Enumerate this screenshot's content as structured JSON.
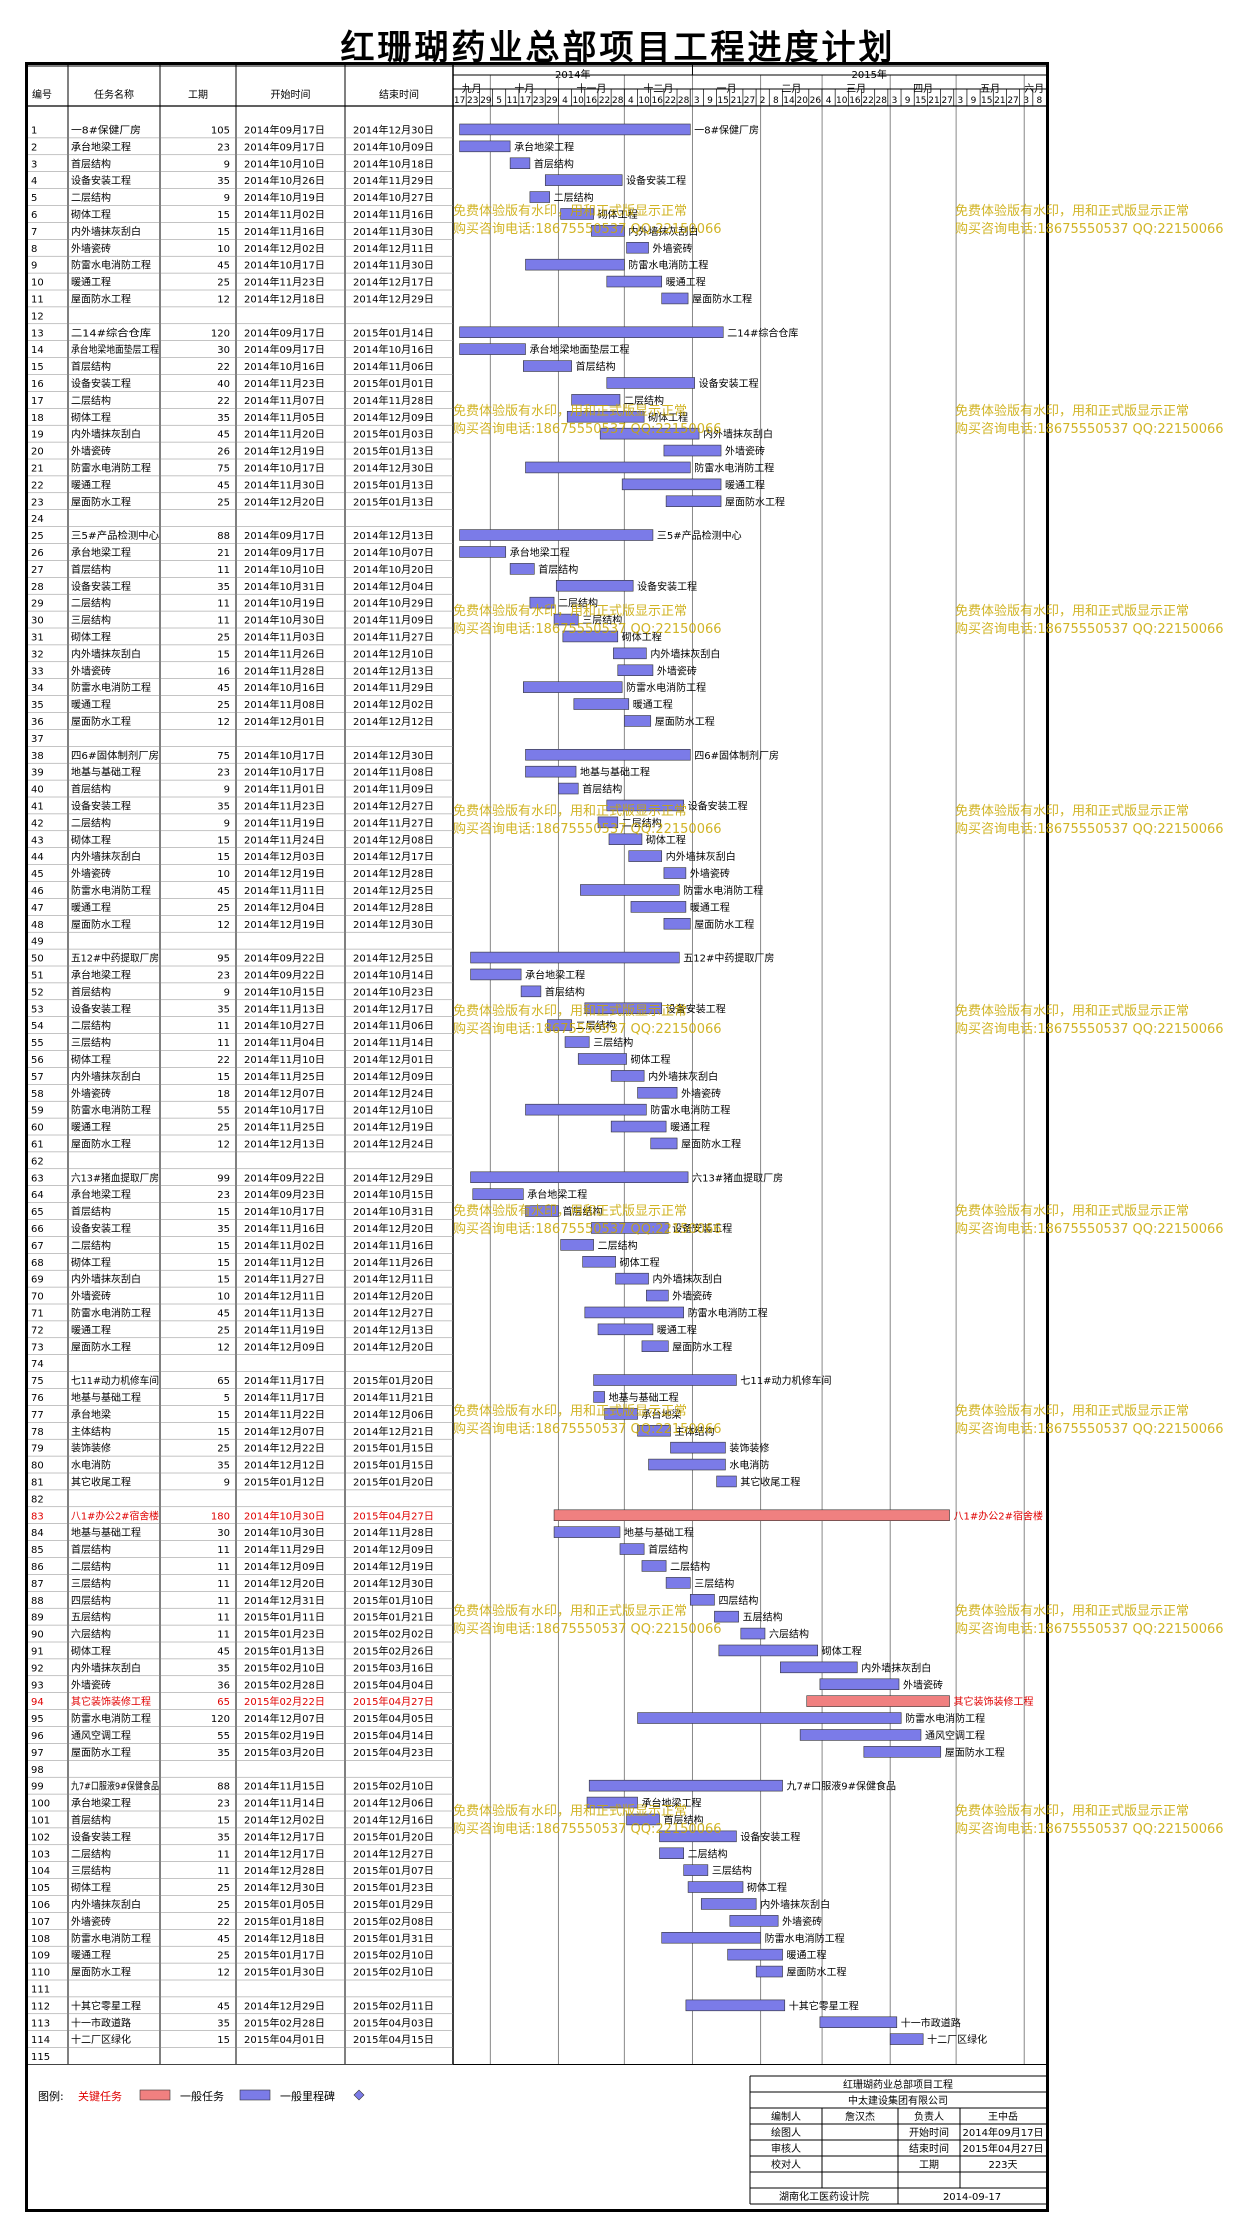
{
  "title": "红珊瑚药业总部项目工程进度计划",
  "columns": {
    "id": "编号",
    "name": "任务名称",
    "duration": "工期",
    "start": "开始时间",
    "end": "结束时间"
  },
  "timeline": {
    "years": [
      "2014年",
      "2015年"
    ],
    "months": [
      "九月",
      "十月",
      "十一月",
      "十二月",
      "一月",
      "二月",
      "三月",
      "四月",
      "五月",
      "六月"
    ],
    "day_ticks": [
      "17",
      "23",
      "29",
      "5",
      "11",
      "17",
      "23",
      "29",
      "4",
      "10",
      "16",
      "22",
      "28",
      "4",
      "10",
      "16",
      "22",
      "28",
      "3",
      "9",
      "15",
      "21",
      "27",
      "2",
      "8",
      "14",
      "20",
      "26",
      "4",
      "10",
      "16",
      "22",
      "28",
      "3",
      "9",
      "15",
      "21",
      "27",
      "3",
      "9",
      "15",
      "21",
      "27",
      "3",
      "8"
    ]
  },
  "tasks": [
    {
      "id": "1",
      "name": "一8#保健厂房",
      "dur": "105",
      "start": "2014年09月17日",
      "end": "2014年12月30日"
    },
    {
      "id": "2",
      "name": "承台地梁工程",
      "dur": "23",
      "start": "2014年09月17日",
      "end": "2014年10月09日"
    },
    {
      "id": "3",
      "name": "首层结构",
      "dur": "9",
      "start": "2014年10月10日",
      "end": "2014年10月18日"
    },
    {
      "id": "4",
      "name": "设备安装工程",
      "dur": "35",
      "start": "2014年10月26日",
      "end": "2014年11月29日"
    },
    {
      "id": "5",
      "name": "二层结构",
      "dur": "9",
      "start": "2014年10月19日",
      "end": "2014年10月27日"
    },
    {
      "id": "6",
      "name": "砌体工程",
      "dur": "15",
      "start": "2014年11月02日",
      "end": "2014年11月16日"
    },
    {
      "id": "7",
      "name": "内外墙抹灰刮白",
      "dur": "15",
      "start": "2014年11月16日",
      "end": "2014年11月30日"
    },
    {
      "id": "8",
      "name": "外墙瓷砖",
      "dur": "10",
      "start": "2014年12月02日",
      "end": "2014年12月11日"
    },
    {
      "id": "9",
      "name": "防雷水电消防工程",
      "dur": "45",
      "start": "2014年10月17日",
      "end": "2014年11月30日"
    },
    {
      "id": "10",
      "name": "暖通工程",
      "dur": "25",
      "start": "2014年11月23日",
      "end": "2014年12月17日"
    },
    {
      "id": "11",
      "name": "屋面防水工程",
      "dur": "12",
      "start": "2014年12月18日",
      "end": "2014年12月29日"
    },
    {
      "id": "12",
      "name": "",
      "dur": "",
      "start": "",
      "end": ""
    },
    {
      "id": "13",
      "name": "二14#综合仓库",
      "dur": "120",
      "start": "2014年09月17日",
      "end": "2015年01月14日"
    },
    {
      "id": "14",
      "name": "承台地梁地面垫层工程",
      "dur": "30",
      "start": "2014年09月17日",
      "end": "2014年10月16日"
    },
    {
      "id": "15",
      "name": "首层结构",
      "dur": "22",
      "start": "2014年10月16日",
      "end": "2014年11月06日"
    },
    {
      "id": "16",
      "name": "设备安装工程",
      "dur": "40",
      "start": "2014年11月23日",
      "end": "2015年01月01日"
    },
    {
      "id": "17",
      "name": "二层结构",
      "dur": "22",
      "start": "2014年11月07日",
      "end": "2014年11月28日"
    },
    {
      "id": "18",
      "name": "砌体工程",
      "dur": "35",
      "start": "2014年11月05日",
      "end": "2014年12月09日"
    },
    {
      "id": "19",
      "name": "内外墙抹灰刮白",
      "dur": "45",
      "start": "2014年11月20日",
      "end": "2015年01月03日"
    },
    {
      "id": "20",
      "name": "外墙瓷砖",
      "dur": "26",
      "start": "2014年12月19日",
      "end": "2015年01月13日"
    },
    {
      "id": "21",
      "name": "防雷水电消防工程",
      "dur": "75",
      "start": "2014年10月17日",
      "end": "2014年12月30日"
    },
    {
      "id": "22",
      "name": "暖通工程",
      "dur": "45",
      "start": "2014年11月30日",
      "end": "2015年01月13日"
    },
    {
      "id": "23",
      "name": "屋面防水工程",
      "dur": "25",
      "start": "2014年12月20日",
      "end": "2015年01月13日"
    },
    {
      "id": "24",
      "name": "",
      "dur": "",
      "start": "",
      "end": ""
    },
    {
      "id": "25",
      "name": "三5#产品检测中心",
      "dur": "88",
      "start": "2014年09月17日",
      "end": "2014年12月13日"
    },
    {
      "id": "26",
      "name": "承台地梁工程",
      "dur": "21",
      "start": "2014年09月17日",
      "end": "2014年10月07日"
    },
    {
      "id": "27",
      "name": "首层结构",
      "dur": "11",
      "start": "2014年10月10日",
      "end": "2014年10月20日"
    },
    {
      "id": "28",
      "name": "设备安装工程",
      "dur": "35",
      "start": "2014年10月31日",
      "end": "2014年12月04日"
    },
    {
      "id": "29",
      "name": "二层结构",
      "dur": "11",
      "start": "2014年10月19日",
      "end": "2014年10月29日"
    },
    {
      "id": "30",
      "name": "三层结构",
      "dur": "11",
      "start": "2014年10月30日",
      "end": "2014年11月09日"
    },
    {
      "id": "31",
      "name": "砌体工程",
      "dur": "25",
      "start": "2014年11月03日",
      "end": "2014年11月27日"
    },
    {
      "id": "32",
      "name": "内外墙抹灰刮白",
      "dur": "15",
      "start": "2014年11月26日",
      "end": "2014年12月10日"
    },
    {
      "id": "33",
      "name": "外墙瓷砖",
      "dur": "16",
      "start": "2014年11月28日",
      "end": "2014年12月13日"
    },
    {
      "id": "34",
      "name": "防雷水电消防工程",
      "dur": "45",
      "start": "2014年10月16日",
      "end": "2014年11月29日"
    },
    {
      "id": "35",
      "name": "暖通工程",
      "dur": "25",
      "start": "2014年11月08日",
      "end": "2014年12月02日"
    },
    {
      "id": "36",
      "name": "屋面防水工程",
      "dur": "12",
      "start": "2014年12月01日",
      "end": "2014年12月12日"
    },
    {
      "id": "37",
      "name": "",
      "dur": "",
      "start": "",
      "end": ""
    },
    {
      "id": "38",
      "name": "四6#固体制剂厂房",
      "dur": "75",
      "start": "2014年10月17日",
      "end": "2014年12月30日"
    },
    {
      "id": "39",
      "name": "地基与基础工程",
      "dur": "23",
      "start": "2014年10月17日",
      "end": "2014年11月08日"
    },
    {
      "id": "40",
      "name": "首层结构",
      "dur": "9",
      "start": "2014年11月01日",
      "end": "2014年11月09日"
    },
    {
      "id": "41",
      "name": "设备安装工程",
      "dur": "35",
      "start": "2014年11月23日",
      "end": "2014年12月27日"
    },
    {
      "id": "42",
      "name": "二层结构",
      "dur": "9",
      "start": "2014年11月19日",
      "end": "2014年11月27日"
    },
    {
      "id": "43",
      "name": "砌体工程",
      "dur": "15",
      "start": "2014年11月24日",
      "end": "2014年12月08日"
    },
    {
      "id": "44",
      "name": "内外墙抹灰刮白",
      "dur": "15",
      "start": "2014年12月03日",
      "end": "2014年12月17日"
    },
    {
      "id": "45",
      "name": "外墙瓷砖",
      "dur": "10",
      "start": "2014年12月19日",
      "end": "2014年12月28日"
    },
    {
      "id": "46",
      "name": "防雷水电消防工程",
      "dur": "45",
      "start": "2014年11月11日",
      "end": "2014年12月25日"
    },
    {
      "id": "47",
      "name": "暖通工程",
      "dur": "25",
      "start": "2014年12月04日",
      "end": "2014年12月28日"
    },
    {
      "id": "48",
      "name": "屋面防水工程",
      "dur": "12",
      "start": "2014年12月19日",
      "end": "2014年12月30日"
    },
    {
      "id": "49",
      "name": "",
      "dur": "",
      "start": "",
      "end": ""
    },
    {
      "id": "50",
      "name": "五12#中药提取厂房",
      "dur": "95",
      "start": "2014年09月22日",
      "end": "2014年12月25日"
    },
    {
      "id": "51",
      "name": "承台地梁工程",
      "dur": "23",
      "start": "2014年09月22日",
      "end": "2014年10月14日"
    },
    {
      "id": "52",
      "name": "首层结构",
      "dur": "9",
      "start": "2014年10月15日",
      "end": "2014年10月23日"
    },
    {
      "id": "53",
      "name": "设备安装工程",
      "dur": "35",
      "start": "2014年11月13日",
      "end": "2014年12月17日"
    },
    {
      "id": "54",
      "name": "二层结构",
      "dur": "11",
      "start": "2014年10月27日",
      "end": "2014年11月06日"
    },
    {
      "id": "55",
      "name": "三层结构",
      "dur": "11",
      "start": "2014年11月04日",
      "end": "2014年11月14日"
    },
    {
      "id": "56",
      "name": "砌体工程",
      "dur": "22",
      "start": "2014年11月10日",
      "end": "2014年12月01日"
    },
    {
      "id": "57",
      "name": "内外墙抹灰刮白",
      "dur": "15",
      "start": "2014年11月25日",
      "end": "2014年12月09日"
    },
    {
      "id": "58",
      "name": "外墙瓷砖",
      "dur": "18",
      "start": "2014年12月07日",
      "end": "2014年12月24日"
    },
    {
      "id": "59",
      "name": "防雷水电消防工程",
      "dur": "55",
      "start": "2014年10月17日",
      "end": "2014年12月10日"
    },
    {
      "id": "60",
      "name": "暖通工程",
      "dur": "25",
      "start": "2014年11月25日",
      "end": "2014年12月19日"
    },
    {
      "id": "61",
      "name": "屋面防水工程",
      "dur": "12",
      "start": "2014年12月13日",
      "end": "2014年12月24日"
    },
    {
      "id": "62",
      "name": "",
      "dur": "",
      "start": "",
      "end": ""
    },
    {
      "id": "63",
      "name": "六13#猪血提取厂房",
      "dur": "99",
      "start": "2014年09月22日",
      "end": "2014年12月29日"
    },
    {
      "id": "64",
      "name": "承台地梁工程",
      "dur": "23",
      "start": "2014年09月23日",
      "end": "2014年10月15日"
    },
    {
      "id": "65",
      "name": "首层结构",
      "dur": "15",
      "start": "2014年10月17日",
      "end": "2014年10月31日"
    },
    {
      "id": "66",
      "name": "设备安装工程",
      "dur": "35",
      "start": "2014年11月16日",
      "end": "2014年12月20日"
    },
    {
      "id": "67",
      "name": "二层结构",
      "dur": "15",
      "start": "2014年11月02日",
      "end": "2014年11月16日"
    },
    {
      "id": "68",
      "name": "砌体工程",
      "dur": "15",
      "start": "2014年11月12日",
      "end": "2014年11月26日"
    },
    {
      "id": "69",
      "name": "内外墙抹灰刮白",
      "dur": "15",
      "start": "2014年11月27日",
      "end": "2014年12月11日"
    },
    {
      "id": "70",
      "name": "外墙瓷砖",
      "dur": "10",
      "start": "2014年12月11日",
      "end": "2014年12月20日"
    },
    {
      "id": "71",
      "name": "防雷水电消防工程",
      "dur": "45",
      "start": "2014年11月13日",
      "end": "2014年12月27日"
    },
    {
      "id": "72",
      "name": "暖通工程",
      "dur": "25",
      "start": "2014年11月19日",
      "end": "2014年12月13日"
    },
    {
      "id": "73",
      "name": "屋面防水工程",
      "dur": "12",
      "start": "2014年12月09日",
      "end": "2014年12月20日"
    },
    {
      "id": "74",
      "name": "",
      "dur": "",
      "start": "",
      "end": ""
    },
    {
      "id": "75",
      "name": "七11#动力机修车间",
      "dur": "65",
      "start": "2014年11月17日",
      "end": "2015年01月20日"
    },
    {
      "id": "76",
      "name": "地基与基础工程",
      "dur": "5",
      "start": "2014年11月17日",
      "end": "2014年11月21日"
    },
    {
      "id": "77",
      "name": "承台地梁",
      "dur": "15",
      "start": "2014年11月22日",
      "end": "2014年12月06日"
    },
    {
      "id": "78",
      "name": "主体结构",
      "dur": "15",
      "start": "2014年12月07日",
      "end": "2014年12月21日"
    },
    {
      "id": "79",
      "name": "装饰装修",
      "dur": "25",
      "start": "2014年12月22日",
      "end": "2015年01月15日"
    },
    {
      "id": "80",
      "name": "水电消防",
      "dur": "35",
      "start": "2014年12月12日",
      "end": "2015年01月15日"
    },
    {
      "id": "81",
      "name": "其它收尾工程",
      "dur": "9",
      "start": "2015年01月12日",
      "end": "2015年01月20日"
    },
    {
      "id": "82",
      "name": "",
      "dur": "",
      "start": "",
      "end": ""
    },
    {
      "id": "83",
      "name": "八1#办公2#宿舍楼",
      "dur": "180",
      "start": "2014年10月30日",
      "end": "2015年04月27日",
      "critical": true
    },
    {
      "id": "84",
      "name": "地基与基础工程",
      "dur": "30",
      "start": "2014年10月30日",
      "end": "2014年11月28日"
    },
    {
      "id": "85",
      "name": "首层结构",
      "dur": "11",
      "start": "2014年11月29日",
      "end": "2014年12月09日"
    },
    {
      "id": "86",
      "name": "二层结构",
      "dur": "11",
      "start": "2014年12月09日",
      "end": "2014年12月19日"
    },
    {
      "id": "87",
      "name": "三层结构",
      "dur": "11",
      "start": "2014年12月20日",
      "end": "2014年12月30日"
    },
    {
      "id": "88",
      "name": "四层结构",
      "dur": "11",
      "start": "2014年12月31日",
      "end": "2015年01月10日"
    },
    {
      "id": "89",
      "name": "五层结构",
      "dur": "11",
      "start": "2015年01月11日",
      "end": "2015年01月21日"
    },
    {
      "id": "90",
      "name": "六层结构",
      "dur": "11",
      "start": "2015年01月23日",
      "end": "2015年02月02日"
    },
    {
      "id": "91",
      "name": "砌体工程",
      "dur": "45",
      "start": "2015年01月13日",
      "end": "2015年02月26日"
    },
    {
      "id": "92",
      "name": "内外墙抹灰刮白",
      "dur": "35",
      "start": "2015年02月10日",
      "end": "2015年03月16日"
    },
    {
      "id": "93",
      "name": "外墙瓷砖",
      "dur": "36",
      "start": "2015年02月28日",
      "end": "2015年04月04日"
    },
    {
      "id": "94",
      "name": "其它装饰装修工程",
      "dur": "65",
      "start": "2015年02月22日",
      "end": "2015年04月27日",
      "critical": true
    },
    {
      "id": "95",
      "name": "防雷水电消防工程",
      "dur": "120",
      "start": "2014年12月07日",
      "end": "2015年04月05日"
    },
    {
      "id": "96",
      "name": "通风空调工程",
      "dur": "55",
      "start": "2015年02月19日",
      "end": "2015年04月14日"
    },
    {
      "id": "97",
      "name": "屋面防水工程",
      "dur": "35",
      "start": "2015年03月20日",
      "end": "2015年04月23日"
    },
    {
      "id": "98",
      "name": "",
      "dur": "",
      "start": "",
      "end": ""
    },
    {
      "id": "99",
      "name": "九7#口服液9#保健食品",
      "dur": "88",
      "start": "2014年11月15日",
      "end": "2015年02月10日"
    },
    {
      "id": "100",
      "name": "承台地梁工程",
      "dur": "23",
      "start": "2014年11月14日",
      "end": "2014年12月06日"
    },
    {
      "id": "101",
      "name": "首层结构",
      "dur": "15",
      "start": "2014年12月02日",
      "end": "2014年12月16日"
    },
    {
      "id": "102",
      "name": "设备安装工程",
      "dur": "35",
      "start": "2014年12月17日",
      "end": "2015年01月20日"
    },
    {
      "id": "103",
      "name": "二层结构",
      "dur": "11",
      "start": "2014年12月17日",
      "end": "2014年12月27日"
    },
    {
      "id": "104",
      "name": "三层结构",
      "dur": "11",
      "start": "2014年12月28日",
      "end": "2015年01月07日"
    },
    {
      "id": "105",
      "name": "砌体工程",
      "dur": "25",
      "start": "2014年12月30日",
      "end": "2015年01月23日"
    },
    {
      "id": "106",
      "name": "内外墙抹灰刮白",
      "dur": "25",
      "start": "2015年01月05日",
      "end": "2015年01月29日"
    },
    {
      "id": "107",
      "name": "外墙瓷砖",
      "dur": "22",
      "start": "2015年01月18日",
      "end": "2015年02月08日"
    },
    {
      "id": "108",
      "name": "防雷水电消防工程",
      "dur": "45",
      "start": "2014年12月18日",
      "end": "2015年01月31日"
    },
    {
      "id": "109",
      "name": "暖通工程",
      "dur": "25",
      "start": "2015年01月17日",
      "end": "2015年02月10日"
    },
    {
      "id": "110",
      "name": "屋面防水工程",
      "dur": "12",
      "start": "2015年01月30日",
      "end": "2015年02月10日"
    },
    {
      "id": "111",
      "name": "",
      "dur": "",
      "start": "",
      "end": ""
    },
    {
      "id": "112",
      "name": "十其它零星工程",
      "dur": "45",
      "start": "2014年12月29日",
      "end": "2015年02月11日"
    },
    {
      "id": "113",
      "name": "十一市政道路",
      "dur": "35",
      "start": "2015年02月28日",
      "end": "2015年04月03日"
    },
    {
      "id": "114",
      "name": "十二厂区绿化",
      "dur": "15",
      "start": "2015年04月01日",
      "end": "2015年04月15日"
    },
    {
      "id": "115",
      "name": "",
      "dur": "",
      "start": "",
      "end": ""
    }
  ],
  "legend": {
    "label": "图例:",
    "critical": "关键任务",
    "normal": "一般任务",
    "milestone": "一般里程碑"
  },
  "info": {
    "project": "红珊瑚药业总部项目工程",
    "company": "中太建设集团有限公司",
    "compiler_label": "编制人",
    "compiler": "詹汉杰",
    "owner_label": "负责人",
    "owner": "王中岳",
    "drawer_label": "绘图人",
    "start_label": "开始时间",
    "start": "2014年09月17日",
    "reviewer_label": "审核人",
    "end_label": "结束时间",
    "end": "2015年04月27日",
    "checker_label": "校对人",
    "period_label": "工期",
    "period": "223天",
    "institute": "湖南化工医药设计院",
    "date": "2014-09-17"
  },
  "watermark": {
    "line1": "免费体验版有水印，用和正式版显示正常",
    "line2": "购买咨询电话:18675550537 QQ:22150066"
  },
  "colors": {
    "task": "#7b7be8",
    "critical": "#f08080",
    "critical_text": "#e00000",
    "watermark": "#c9a800"
  }
}
